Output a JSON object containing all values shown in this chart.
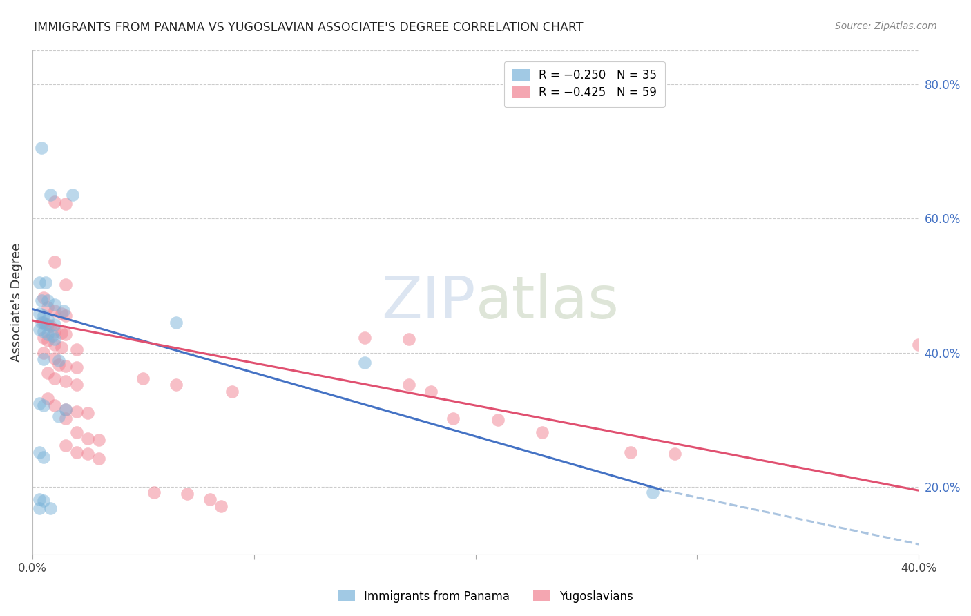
{
  "title": "IMMIGRANTS FROM PANAMA VS YUGOSLAVIAN ASSOCIATE'S DEGREE CORRELATION CHART",
  "source": "Source: ZipAtlas.com",
  "ylabel": "Associate's Degree",
  "right_yticks": [
    "80.0%",
    "60.0%",
    "40.0%",
    "20.0%"
  ],
  "right_ytick_vals": [
    0.8,
    0.6,
    0.4,
    0.2
  ],
  "legend_labels": [
    "Immigrants from Panama",
    "Yugoslavians"
  ],
  "blue_color": "#7ab3d9",
  "pink_color": "#f08090",
  "blue_scatter": [
    [
      0.004,
      0.705
    ],
    [
      0.008,
      0.635
    ],
    [
      0.018,
      0.635
    ],
    [
      0.003,
      0.505
    ],
    [
      0.006,
      0.505
    ],
    [
      0.004,
      0.478
    ],
    [
      0.007,
      0.478
    ],
    [
      0.01,
      0.472
    ],
    [
      0.003,
      0.458
    ],
    [
      0.005,
      0.455
    ],
    [
      0.007,
      0.45
    ],
    [
      0.004,
      0.445
    ],
    [
      0.006,
      0.442
    ],
    [
      0.01,
      0.442
    ],
    [
      0.003,
      0.435
    ],
    [
      0.005,
      0.432
    ],
    [
      0.007,
      0.428
    ],
    [
      0.009,
      0.425
    ],
    [
      0.01,
      0.42
    ],
    [
      0.005,
      0.39
    ],
    [
      0.012,
      0.388
    ],
    [
      0.003,
      0.325
    ],
    [
      0.005,
      0.322
    ],
    [
      0.015,
      0.315
    ],
    [
      0.012,
      0.305
    ],
    [
      0.003,
      0.252
    ],
    [
      0.005,
      0.245
    ],
    [
      0.003,
      0.182
    ],
    [
      0.005,
      0.18
    ],
    [
      0.003,
      0.168
    ],
    [
      0.008,
      0.168
    ],
    [
      0.065,
      0.445
    ],
    [
      0.15,
      0.385
    ],
    [
      0.28,
      0.192
    ],
    [
      0.014,
      0.462
    ]
  ],
  "pink_scatter": [
    [
      0.01,
      0.625
    ],
    [
      0.015,
      0.622
    ],
    [
      0.01,
      0.535
    ],
    [
      0.015,
      0.502
    ],
    [
      0.005,
      0.482
    ],
    [
      0.007,
      0.468
    ],
    [
      0.01,
      0.462
    ],
    [
      0.013,
      0.458
    ],
    [
      0.015,
      0.455
    ],
    [
      0.005,
      0.445
    ],
    [
      0.007,
      0.442
    ],
    [
      0.008,
      0.44
    ],
    [
      0.01,
      0.432
    ],
    [
      0.013,
      0.43
    ],
    [
      0.015,
      0.428
    ],
    [
      0.005,
      0.422
    ],
    [
      0.007,
      0.418
    ],
    [
      0.01,
      0.412
    ],
    [
      0.013,
      0.408
    ],
    [
      0.02,
      0.405
    ],
    [
      0.005,
      0.4
    ],
    [
      0.01,
      0.392
    ],
    [
      0.012,
      0.382
    ],
    [
      0.015,
      0.38
    ],
    [
      0.02,
      0.378
    ],
    [
      0.007,
      0.37
    ],
    [
      0.01,
      0.362
    ],
    [
      0.015,
      0.358
    ],
    [
      0.02,
      0.352
    ],
    [
      0.007,
      0.332
    ],
    [
      0.01,
      0.322
    ],
    [
      0.015,
      0.315
    ],
    [
      0.02,
      0.312
    ],
    [
      0.025,
      0.31
    ],
    [
      0.015,
      0.302
    ],
    [
      0.02,
      0.282
    ],
    [
      0.025,
      0.272
    ],
    [
      0.03,
      0.27
    ],
    [
      0.015,
      0.262
    ],
    [
      0.02,
      0.252
    ],
    [
      0.025,
      0.25
    ],
    [
      0.03,
      0.242
    ],
    [
      0.05,
      0.362
    ],
    [
      0.065,
      0.352
    ],
    [
      0.09,
      0.342
    ],
    [
      0.055,
      0.192
    ],
    [
      0.07,
      0.19
    ],
    [
      0.08,
      0.182
    ],
    [
      0.085,
      0.172
    ],
    [
      0.15,
      0.422
    ],
    [
      0.17,
      0.42
    ],
    [
      0.17,
      0.352
    ],
    [
      0.18,
      0.342
    ],
    [
      0.19,
      0.302
    ],
    [
      0.21,
      0.3
    ],
    [
      0.23,
      0.282
    ],
    [
      0.27,
      0.252
    ],
    [
      0.29,
      0.25
    ],
    [
      0.4,
      0.412
    ]
  ],
  "xlim": [
    0.0,
    0.4
  ],
  "ylim": [
    0.1,
    0.85
  ],
  "grid_color": "#cccccc",
  "background_color": "#ffffff",
  "blue_line_color": "#4472c4",
  "pink_line_color": "#e05070",
  "blue_line_dashed_color": "#aac4e0",
  "blue_line_x0": 0.0,
  "blue_line_y0": 0.465,
  "blue_line_x1": 0.285,
  "blue_line_y1": 0.195,
  "blue_line_dashed_x1": 0.4,
  "blue_line_dashed_y1": 0.115,
  "pink_line_x0": 0.0,
  "pink_line_y0": 0.448,
  "pink_line_x1": 0.4,
  "pink_line_y1": 0.195
}
